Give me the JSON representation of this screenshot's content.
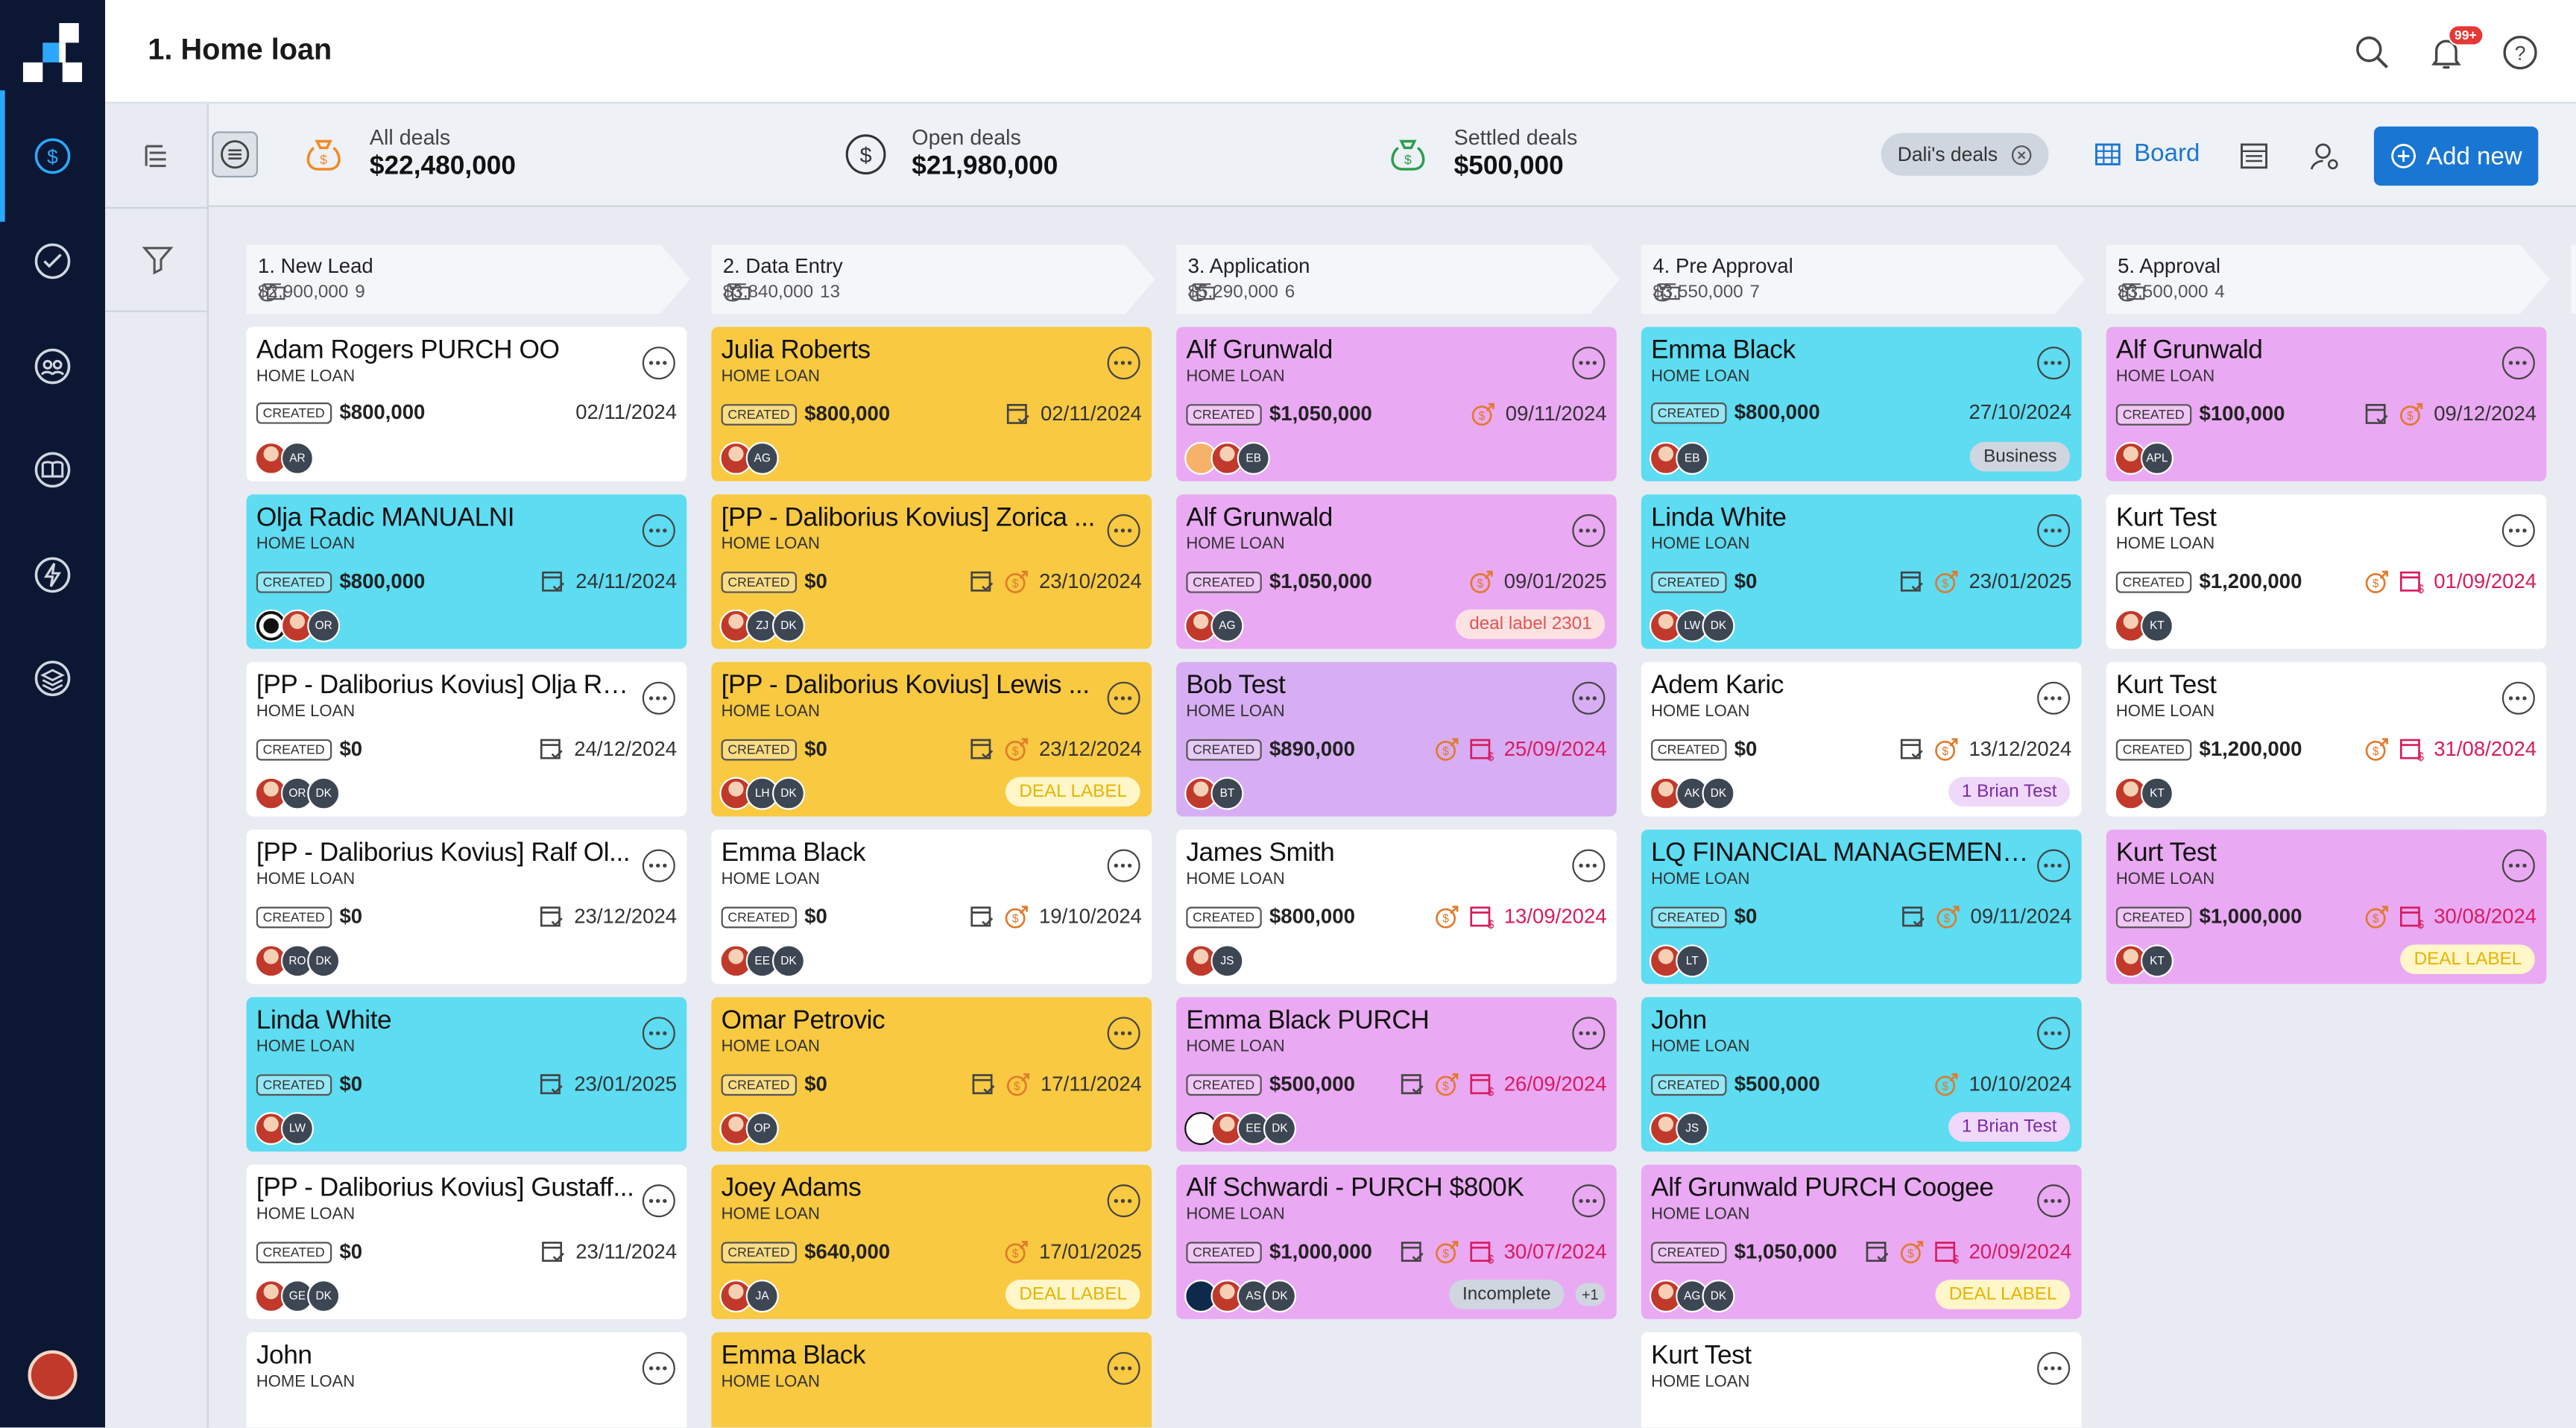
{
  "topbar": {
    "title": "1. Home loan",
    "notif_badge": "99+"
  },
  "stats": {
    "all": {
      "label": "All deals",
      "value": "$22,480,000"
    },
    "open": {
      "label": "Open deals",
      "value": "$21,980,000"
    },
    "settled": {
      "label": "Settled deals",
      "value": "$500,000"
    }
  },
  "filter_chip": "Dali's deals",
  "view": {
    "board_label": "Board"
  },
  "add_new": "Add new",
  "columns": [
    {
      "name": "1. New Lead",
      "total": "$2,900,000",
      "count": "9"
    },
    {
      "name": "2. Data Entry",
      "total": "$3,840,000",
      "count": "13"
    },
    {
      "name": "3. Application",
      "total": "$5,290,000",
      "count": "6"
    },
    {
      "name": "4. Pre Approval",
      "total": "$3,550,000",
      "count": "7"
    },
    {
      "name": "5. Approval",
      "total": "$3,500,000",
      "count": "4"
    }
  ],
  "cards": [
    [
      {
        "name": "Adam Rogers PURCH OO",
        "type": "HOME LOAN",
        "tag": "CREATED",
        "amount": "$800,000",
        "date": "02/11/2024",
        "avatars": [
          "AR"
        ]
      },
      {
        "name": "Olja Radic MANUALNI",
        "type": "HOME LOAN",
        "tag": "CREATED",
        "amount": "$800,000",
        "date": "24/11/2024",
        "avatars": [
          "OR"
        ]
      },
      {
        "name": "[PP - Daliborius Kovius] Olja Ra...",
        "type": "HOME LOAN",
        "tag": "CREATED",
        "amount": "$0",
        "date": "24/12/2024",
        "avatars": [
          "OR",
          "DK"
        ]
      },
      {
        "name": "[PP - Daliborius Kovius] Ralf Ol...",
        "type": "HOME LOAN",
        "tag": "CREATED",
        "amount": "$0",
        "date": "23/12/2024",
        "avatars": [
          "RO",
          "DK"
        ]
      },
      {
        "name": "Linda White",
        "type": "HOME LOAN",
        "tag": "CREATED",
        "amount": "$0",
        "date": "23/01/2025",
        "avatars": [
          "LW"
        ]
      },
      {
        "name": "[PP - Daliborius Kovius] Gustaff...",
        "type": "HOME LOAN",
        "tag": "CREATED",
        "amount": "$0",
        "date": "23/11/2024",
        "avatars": [
          "GE",
          "DK"
        ]
      },
      {
        "name": "John",
        "type": "HOME LOAN"
      }
    ],
    [
      {
        "name": "Julia Roberts",
        "type": "HOME LOAN",
        "tag": "CREATED",
        "amount": "$800,000",
        "date": "02/11/2024",
        "avatars": [
          "AG"
        ]
      },
      {
        "name": "[PP - Daliborius Kovius] Zorica ...",
        "type": "HOME LOAN",
        "tag": "CREATED",
        "amount": "$0",
        "date": "23/10/2024",
        "avatars": [
          "ZJ",
          "DK"
        ]
      },
      {
        "name": "[PP - Daliborius Kovius] Lewis ...",
        "type": "HOME LOAN",
        "tag": "CREATED",
        "amount": "$0",
        "date": "23/12/2024",
        "avatars": [
          "LH",
          "DK"
        ],
        "label": "DEAL LABEL"
      },
      {
        "name": "Emma Black",
        "type": "HOME LOAN",
        "tag": "CREATED",
        "amount": "$0",
        "date": "19/10/2024",
        "avatars": [
          "EE",
          "DK"
        ]
      },
      {
        "name": "Omar Petrovic",
        "type": "HOME LOAN",
        "tag": "CREATED",
        "amount": "$0",
        "date": "17/11/2024",
        "avatars": [
          "OP"
        ]
      },
      {
        "name": "Joey Adams",
        "type": "HOME LOAN",
        "tag": "CREATED",
        "amount": "$640,000",
        "date": "17/01/2025",
        "avatars": [
          "JA"
        ],
        "label": "DEAL LABEL"
      },
      {
        "name": "Emma Black",
        "type": "HOME LOAN"
      }
    ],
    [
      {
        "name": "Alf Grunwald",
        "type": "HOME LOAN",
        "tag": "CREATED",
        "amount": "$1,050,000",
        "date": "09/11/2024",
        "avatars": [
          "EB"
        ]
      },
      {
        "name": "Alf Grunwald",
        "type": "HOME LOAN",
        "tag": "CREATED",
        "amount": "$1,050,000",
        "date": "09/01/2025",
        "avatars": [
          "AG"
        ],
        "label": "deal label 2301"
      },
      {
        "name": "Bob Test",
        "type": "HOME LOAN",
        "tag": "CREATED",
        "amount": "$890,000",
        "date": "25/09/2024",
        "avatars": [
          "BT"
        ]
      },
      {
        "name": "James Smith",
        "type": "HOME LOAN",
        "tag": "CREATED",
        "amount": "$800,000",
        "date": "13/09/2024",
        "avatars": [
          "JS"
        ]
      },
      {
        "name": "Emma Black PURCH",
        "type": "HOME LOAN",
        "tag": "CREATED",
        "amount": "$500,000",
        "date": "26/09/2024",
        "avatars": [
          "EE",
          "DK"
        ]
      },
      {
        "name": "Alf Schwardi - PURCH $800K",
        "type": "HOME LOAN",
        "tag": "CREATED",
        "amount": "$1,000,000",
        "date": "30/07/2024",
        "avatars": [
          "AS",
          "DK"
        ],
        "label": "Incomplete",
        "extra": "+1"
      }
    ],
    [
      {
        "name": "Emma Black",
        "type": "HOME LOAN",
        "tag": "CREATED",
        "amount": "$800,000",
        "date": "27/10/2024",
        "avatars": [
          "EB"
        ],
        "label": "Business"
      },
      {
        "name": "Linda White",
        "type": "HOME LOAN",
        "tag": "CREATED",
        "amount": "$0",
        "date": "23/01/2025",
        "avatars": [
          "LW",
          "DK"
        ]
      },
      {
        "name": "Adem Karic",
        "type": "HOME LOAN",
        "tag": "CREATED",
        "amount": "$0",
        "date": "13/12/2024",
        "avatars": [
          "AK",
          "DK"
        ],
        "label": "1 Brian Test"
      },
      {
        "name": "LQ FINANCIAL MANAGEMENT...",
        "type": "HOME LOAN",
        "tag": "CREATED",
        "amount": "$0",
        "date": "09/11/2024",
        "avatars": [
          "LT"
        ]
      },
      {
        "name": "John",
        "type": "HOME LOAN",
        "tag": "CREATED",
        "amount": "$500,000",
        "date": "10/10/2024",
        "avatars": [
          "JS"
        ],
        "label": "1 Brian Test"
      },
      {
        "name": "Alf Grunwald PURCH Coogee",
        "type": "HOME LOAN",
        "tag": "CREATED",
        "amount": "$1,050,000",
        "date": "20/09/2024",
        "avatars": [
          "AG",
          "DK"
        ],
        "label": "DEAL LABEL"
      },
      {
        "name": "Kurt Test",
        "type": "HOME LOAN"
      }
    ],
    [
      {
        "name": "Alf Grunwald",
        "type": "HOME LOAN",
        "tag": "CREATED",
        "amount": "$100,000",
        "date": "09/12/2024",
        "avatars": [
          "APL"
        ]
      },
      {
        "name": "Kurt Test",
        "type": "HOME LOAN",
        "tag": "CREATED",
        "amount": "$1,200,000",
        "date": "01/09/2024",
        "avatars": [
          "KT"
        ]
      },
      {
        "name": "Kurt Test",
        "type": "HOME LOAN",
        "tag": "CREATED",
        "amount": "$1,200,000",
        "date": "31/08/2024",
        "avatars": [
          "KT"
        ]
      },
      {
        "name": "Kurt Test",
        "type": "HOME LOAN",
        "tag": "CREATED",
        "amount": "$1,000,000",
        "date": "30/08/2024",
        "avatars": [
          "KT"
        ],
        "label": "DEAL LABEL"
      }
    ]
  ]
}
